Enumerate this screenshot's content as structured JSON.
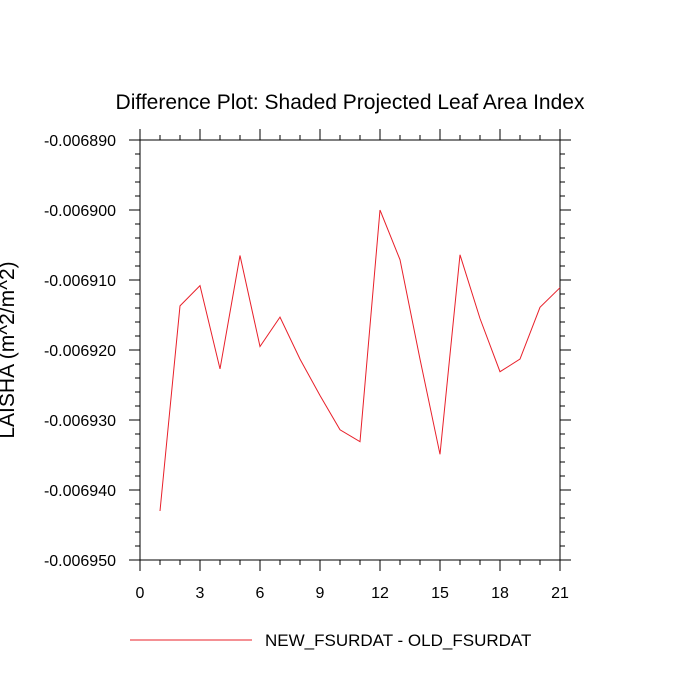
{
  "chart_data": {
    "type": "line",
    "title": "Difference Plot: Shaded Projected Leaf Area Index",
    "xlabel": "",
    "ylabel": "LAISHA  (m^2/m^2)",
    "xlim": [
      0,
      21
    ],
    "ylim": [
      -0.00695,
      -0.00689
    ],
    "x_ticks": [
      0,
      3,
      6,
      9,
      12,
      15,
      18,
      21
    ],
    "x_tick_labels": [
      "0",
      "3",
      "6",
      "9",
      "12",
      "15",
      "18",
      "21"
    ],
    "y_ticks": [
      -0.00689,
      -0.0069,
      -0.00691,
      -0.00692,
      -0.00693,
      -0.00694,
      -0.00695
    ],
    "y_tick_labels": [
      "-0.006890",
      "-0.006900",
      "-0.006910",
      "-0.006920",
      "-0.006930",
      "-0.006940",
      "-0.006950"
    ],
    "grid": false,
    "legend_position": "bottom",
    "series": [
      {
        "name": "NEW_FSURDAT - OLD_FSURDAT",
        "color": "#e8202a",
        "x": [
          1,
          2,
          3,
          4,
          5,
          6,
          7,
          8,
          9,
          10,
          11,
          12,
          13,
          14,
          15,
          16,
          17,
          18,
          19,
          20,
          21
        ],
        "y": [
          -0.006943,
          -0.0069137,
          -0.0069108,
          -0.0069227,
          -0.0069065,
          -0.0069195,
          -0.0069153,
          -0.0069213,
          -0.0069265,
          -0.0069314,
          -0.0069331,
          -0.0069,
          -0.0069071,
          -0.0069213,
          -0.0069349,
          -0.0069064,
          -0.0069155,
          -0.0069231,
          -0.0069213,
          -0.0069139,
          -0.0069111
        ]
      }
    ]
  }
}
